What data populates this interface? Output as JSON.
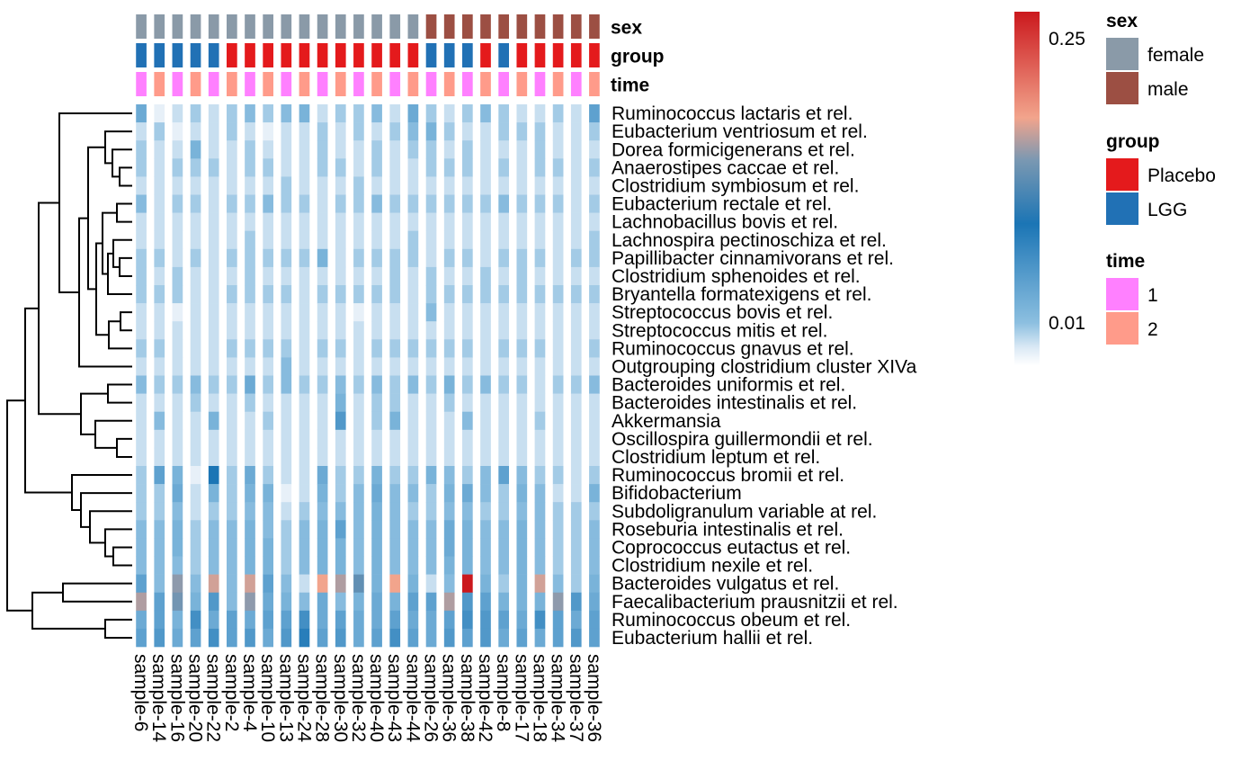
{
  "chart_data": {
    "type": "heatmap",
    "columns": [
      "sample-6",
      "sample-14",
      "sample-16",
      "sample-20",
      "sample-22",
      "sample-2",
      "sample-4",
      "sample-10",
      "sample-13",
      "sample-24",
      "sample-28",
      "sample-30",
      "sample-32",
      "sample-40",
      "sample-43",
      "sample-44",
      "sample-26",
      "sample-36",
      "sample-38",
      "sample-42",
      "sample-8",
      "sample-17",
      "sample-18",
      "sample-34",
      "sample-37",
      "sample-36"
    ],
    "rows": [
      "Ruminococcus lactaris et rel.",
      "Eubacterium ventriosum et rel.",
      "Dorea formicigenerans et rel.",
      "Anaerostipes caccae et rel.",
      "Clostridium symbiosum et rel.",
      "Eubacterium rectale et rel.",
      "Lachnobacillus bovis et rel.",
      "Lachnospira pectinoschiza et rel.",
      "Papillibacter cinnamivorans et rel.",
      "Clostridium sphenoides et rel.",
      "Bryantella formatexigens et rel.",
      "Streptococcus bovis et rel.",
      "Streptococcus mitis et rel.",
      "Ruminococcus gnavus et rel.",
      "Outgrouping clostridium cluster XIVa",
      "Bacteroides uniformis et rel.",
      "Bacteroides intestinalis et rel.",
      "Akkermansia",
      "Oscillospira guillermondii et rel.",
      "Clostridium leptum et rel.",
      "Ruminococcus bromii et rel.",
      "Bifidobacterium",
      "Subdoligranulum variable at rel.",
      "Roseburia intestinalis et rel.",
      "Coprococcus eutactus et rel.",
      "Clostridium nexile et rel.",
      "Bacteroides vulgatus et rel.",
      "Faecalibacterium prausnitzii et rel.",
      "Ruminococcus obeum et rel.",
      "Eubacterium hallii et rel."
    ],
    "annotations": {
      "sex": [
        "female",
        "female",
        "female",
        "female",
        "female",
        "female",
        "female",
        "female",
        "female",
        "female",
        "female",
        "female",
        "female",
        "female",
        "female",
        "female",
        "male",
        "male",
        "male",
        "male",
        "male",
        "male",
        "male",
        "male",
        "male",
        "male"
      ],
      "group": [
        "LGG",
        "LGG",
        "LGG",
        "LGG",
        "LGG",
        "Placebo",
        "Placebo",
        "Placebo",
        "Placebo",
        "Placebo",
        "Placebo",
        "Placebo",
        "Placebo",
        "Placebo",
        "Placebo",
        "Placebo",
        "LGG",
        "LGG",
        "LGG",
        "Placebo",
        "LGG",
        "Placebo",
        "Placebo",
        "Placebo",
        "Placebo",
        "Placebo"
      ],
      "time": [
        "1",
        "2",
        "1",
        "2",
        "1",
        "2",
        "1",
        "2",
        "1",
        "2",
        "1",
        "2",
        "1",
        "2",
        "1",
        "2",
        "1",
        "2",
        "1",
        "2",
        "1",
        "2",
        "1",
        "2",
        "1",
        "2"
      ]
    },
    "annotation_titles": [
      "sex",
      "group",
      "time"
    ],
    "values": [
      [
        0.06,
        0.01,
        0.02,
        0.03,
        0.02,
        0.03,
        0.04,
        0.03,
        0.04,
        0.05,
        0.02,
        0.03,
        0.03,
        0.04,
        0.02,
        0.06,
        0.03,
        0.02,
        0.03,
        0.04,
        0.03,
        0.02,
        0.02,
        0.03,
        0.02,
        0.07
      ],
      [
        0.02,
        0.03,
        0.01,
        0.02,
        0.02,
        0.03,
        0.02,
        0.01,
        0.02,
        0.02,
        0.03,
        0.02,
        0.03,
        0.02,
        0.03,
        0.04,
        0.05,
        0.03,
        0.02,
        0.02,
        0.03,
        0.03,
        0.03,
        0.02,
        0.02,
        0.03
      ],
      [
        0.03,
        0.02,
        0.02,
        0.05,
        0.02,
        0.02,
        0.03,
        0.02,
        0.02,
        0.02,
        0.03,
        0.02,
        0.02,
        0.03,
        0.02,
        0.03,
        0.03,
        0.02,
        0.03,
        0.02,
        0.02,
        0.02,
        0.03,
        0.02,
        0.02,
        0.02
      ],
      [
        0.03,
        0.02,
        0.03,
        0.03,
        0.03,
        0.02,
        0.03,
        0.03,
        0.02,
        0.02,
        0.03,
        0.03,
        0.02,
        0.03,
        0.02,
        0.02,
        0.03,
        0.03,
        0.03,
        0.02,
        0.03,
        0.02,
        0.03,
        0.03,
        0.02,
        0.03
      ],
      [
        0.02,
        0.02,
        0.02,
        0.02,
        0.02,
        0.02,
        0.02,
        0.02,
        0.03,
        0.02,
        0.02,
        0.02,
        0.03,
        0.02,
        0.02,
        0.02,
        0.02,
        0.02,
        0.02,
        0.02,
        0.02,
        0.02,
        0.02,
        0.02,
        0.02,
        0.02
      ],
      [
        0.04,
        0.02,
        0.03,
        0.03,
        0.02,
        0.03,
        0.03,
        0.04,
        0.03,
        0.03,
        0.02,
        0.03,
        0.03,
        0.04,
        0.03,
        0.03,
        0.03,
        0.03,
        0.03,
        0.03,
        0.04,
        0.03,
        0.03,
        0.03,
        0.02,
        0.03
      ],
      [
        0.02,
        0.02,
        0.02,
        0.02,
        0.02,
        0.02,
        0.02,
        0.02,
        0.02,
        0.02,
        0.02,
        0.02,
        0.02,
        0.02,
        0.02,
        0.02,
        0.02,
        0.02,
        0.02,
        0.02,
        0.02,
        0.02,
        0.02,
        0.02,
        0.02,
        0.02
      ],
      [
        0.02,
        0.02,
        0.02,
        0.02,
        0.02,
        0.02,
        0.03,
        0.02,
        0.02,
        0.02,
        0.02,
        0.02,
        0.02,
        0.02,
        0.02,
        0.03,
        0.02,
        0.02,
        0.02,
        0.02,
        0.02,
        0.02,
        0.02,
        0.02,
        0.02,
        0.03
      ],
      [
        0.03,
        0.03,
        0.02,
        0.03,
        0.02,
        0.03,
        0.03,
        0.03,
        0.03,
        0.03,
        0.05,
        0.02,
        0.03,
        0.03,
        0.03,
        0.03,
        0.02,
        0.03,
        0.03,
        0.02,
        0.03,
        0.03,
        0.03,
        0.02,
        0.03,
        0.03
      ],
      [
        0.03,
        0.02,
        0.03,
        0.02,
        0.02,
        0.02,
        0.03,
        0.02,
        0.02,
        0.02,
        0.02,
        0.02,
        0.02,
        0.02,
        0.03,
        0.02,
        0.03,
        0.02,
        0.02,
        0.03,
        0.02,
        0.03,
        0.02,
        0.02,
        0.02,
        0.02
      ],
      [
        0.03,
        0.03,
        0.03,
        0.02,
        0.02,
        0.03,
        0.03,
        0.03,
        0.03,
        0.02,
        0.03,
        0.03,
        0.03,
        0.03,
        0.03,
        0.02,
        0.03,
        0.03,
        0.03,
        0.03,
        0.03,
        0.03,
        0.03,
        0.03,
        0.03,
        0.03
      ],
      [
        0.02,
        0.02,
        0.01,
        0.02,
        0.02,
        0.02,
        0.02,
        0.02,
        0.02,
        0.02,
        0.02,
        0.02,
        0.01,
        0.02,
        0.02,
        0.02,
        0.04,
        0.02,
        0.02,
        0.02,
        0.02,
        0.02,
        0.02,
        0.02,
        0.02,
        0.02
      ],
      [
        0.02,
        0.02,
        0.02,
        0.02,
        0.02,
        0.02,
        0.02,
        0.02,
        0.02,
        0.02,
        0.02,
        0.02,
        0.02,
        0.02,
        0.02,
        0.02,
        0.02,
        0.02,
        0.02,
        0.02,
        0.02,
        0.02,
        0.02,
        0.02,
        0.02,
        0.02
      ],
      [
        0.03,
        0.03,
        0.02,
        0.02,
        0.02,
        0.03,
        0.03,
        0.03,
        0.03,
        0.02,
        0.03,
        0.03,
        0.02,
        0.03,
        0.03,
        0.03,
        0.03,
        0.03,
        0.03,
        0.02,
        0.03,
        0.03,
        0.03,
        0.02,
        0.02,
        0.03
      ],
      [
        0.02,
        0.02,
        0.02,
        0.02,
        0.02,
        0.02,
        0.02,
        0.02,
        0.04,
        0.02,
        0.02,
        0.02,
        0.02,
        0.02,
        0.02,
        0.02,
        0.02,
        0.02,
        0.02,
        0.02,
        0.02,
        0.02,
        0.02,
        0.02,
        0.02,
        0.02
      ],
      [
        0.04,
        0.03,
        0.03,
        0.04,
        0.03,
        0.03,
        0.06,
        0.03,
        0.04,
        0.03,
        0.03,
        0.04,
        0.03,
        0.04,
        0.03,
        0.04,
        0.03,
        0.05,
        0.03,
        0.04,
        0.03,
        0.03,
        0.02,
        0.03,
        0.03,
        0.04
      ],
      [
        0.02,
        0.02,
        0.02,
        0.03,
        0.02,
        0.02,
        0.03,
        0.02,
        0.02,
        0.02,
        0.02,
        0.05,
        0.02,
        0.03,
        0.03,
        0.02,
        0.02,
        0.03,
        0.02,
        0.02,
        0.02,
        0.02,
        0.02,
        0.02,
        0.02,
        0.02
      ],
      [
        0.02,
        0.04,
        0.02,
        0.02,
        0.05,
        0.02,
        0.02,
        0.03,
        0.02,
        0.02,
        0.02,
        0.08,
        0.02,
        0.03,
        0.05,
        0.02,
        0.02,
        0.02,
        0.04,
        0.02,
        0.02,
        0.02,
        0.03,
        0.02,
        0.02,
        0.02
      ],
      [
        0.02,
        0.02,
        0.02,
        0.02,
        0.02,
        0.02,
        0.02,
        0.02,
        0.02,
        0.02,
        0.02,
        0.02,
        0.02,
        0.02,
        0.02,
        0.02,
        0.02,
        0.02,
        0.02,
        0.02,
        0.02,
        0.02,
        0.02,
        0.02,
        0.02,
        0.02
      ],
      [
        0.02,
        0.02,
        0.02,
        0.02,
        0.02,
        0.02,
        0.02,
        0.02,
        0.02,
        0.02,
        0.02,
        0.02,
        0.02,
        0.02,
        0.02,
        0.02,
        0.02,
        0.02,
        0.02,
        0.02,
        0.02,
        0.02,
        0.02,
        0.02,
        0.02,
        0.02
      ],
      [
        0.03,
        0.07,
        0.05,
        0.01,
        0.12,
        0.03,
        0.06,
        0.03,
        0.02,
        0.02,
        0.06,
        0.03,
        0.03,
        0.05,
        0.03,
        0.03,
        0.05,
        0.04,
        0.03,
        0.04,
        0.07,
        0.04,
        0.03,
        0.03,
        0.02,
        0.03
      ],
      [
        0.03,
        0.03,
        0.06,
        0.02,
        0.05,
        0.03,
        0.05,
        0.05,
        0.01,
        0.02,
        0.05,
        0.03,
        0.04,
        0.06,
        0.04,
        0.04,
        0.03,
        0.05,
        0.06,
        0.04,
        0.03,
        0.05,
        0.04,
        0.02,
        0.02,
        0.05
      ],
      [
        0.03,
        0.03,
        0.04,
        0.02,
        0.03,
        0.03,
        0.04,
        0.04,
        0.02,
        0.03,
        0.04,
        0.04,
        0.04,
        0.05,
        0.04,
        0.03,
        0.03,
        0.04,
        0.04,
        0.03,
        0.03,
        0.04,
        0.04,
        0.03,
        0.03,
        0.03
      ],
      [
        0.04,
        0.04,
        0.05,
        0.03,
        0.04,
        0.04,
        0.05,
        0.04,
        0.03,
        0.04,
        0.05,
        0.07,
        0.04,
        0.05,
        0.04,
        0.04,
        0.04,
        0.06,
        0.05,
        0.04,
        0.04,
        0.05,
        0.04,
        0.03,
        0.03,
        0.04
      ],
      [
        0.04,
        0.04,
        0.05,
        0.03,
        0.04,
        0.04,
        0.05,
        0.05,
        0.03,
        0.04,
        0.05,
        0.05,
        0.04,
        0.05,
        0.04,
        0.04,
        0.04,
        0.06,
        0.05,
        0.04,
        0.04,
        0.05,
        0.04,
        0.03,
        0.03,
        0.04
      ],
      [
        0.04,
        0.04,
        0.04,
        0.03,
        0.04,
        0.04,
        0.05,
        0.05,
        0.03,
        0.04,
        0.05,
        0.05,
        0.04,
        0.05,
        0.04,
        0.04,
        0.04,
        0.05,
        0.05,
        0.04,
        0.04,
        0.05,
        0.04,
        0.03,
        0.03,
        0.04
      ],
      [
        0.07,
        0.04,
        0.18,
        0.04,
        0.2,
        0.04,
        0.2,
        0.07,
        0.04,
        0.02,
        0.21,
        0.19,
        0.16,
        0.05,
        0.21,
        0.05,
        0.02,
        0.04,
        0.3,
        0.05,
        0.03,
        0.05,
        0.2,
        0.04,
        0.03,
        0.05
      ],
      [
        0.19,
        0.07,
        0.17,
        0.05,
        0.08,
        0.04,
        0.18,
        0.06,
        0.05,
        0.04,
        0.06,
        0.04,
        0.05,
        0.06,
        0.05,
        0.07,
        0.07,
        0.19,
        0.08,
        0.07,
        0.05,
        0.05,
        0.05,
        0.18,
        0.08,
        0.06
      ],
      [
        0.06,
        0.07,
        0.05,
        0.09,
        0.06,
        0.07,
        0.06,
        0.07,
        0.07,
        0.09,
        0.06,
        0.07,
        0.06,
        0.06,
        0.07,
        0.06,
        0.06,
        0.07,
        0.09,
        0.08,
        0.07,
        0.06,
        0.09,
        0.07,
        0.06,
        0.07
      ],
      [
        0.07,
        0.08,
        0.06,
        0.07,
        0.09,
        0.07,
        0.08,
        0.06,
        0.08,
        0.11,
        0.07,
        0.08,
        0.06,
        0.07,
        0.09,
        0.07,
        0.06,
        0.08,
        0.07,
        0.08,
        0.06,
        0.07,
        0.06,
        0.07,
        0.08,
        0.07
      ]
    ],
    "colorbar": {
      "ticks": [
        "0.25",
        "0.01"
      ],
      "range": [
        0.0,
        0.3
      ]
    },
    "legends": [
      {
        "title": "sex",
        "items": [
          {
            "label": "female",
            "color": "#8a9aa8"
          },
          {
            "label": "male",
            "color": "#9c4f43"
          }
        ]
      },
      {
        "title": "group",
        "items": [
          {
            "label": "Placebo",
            "color": "#e41a1c"
          },
          {
            "label": "LGG",
            "color": "#2171b5"
          }
        ]
      },
      {
        "title": "time",
        "items": [
          {
            "label": "1",
            "color": "#ff80ff"
          },
          {
            "label": "2",
            "color": "#ff9b8a"
          }
        ]
      }
    ],
    "colors": {
      "female": "#8a9aa8",
      "male": "#9c4f43",
      "Placebo": "#e41a1c",
      "LGG": "#2171b5",
      "time_1": "#ff80ff",
      "time_2": "#ff9b8a",
      "scale_low": "#ffffff",
      "scale_mid": "#0a72b0",
      "scale_high": "#cb181d"
    }
  }
}
